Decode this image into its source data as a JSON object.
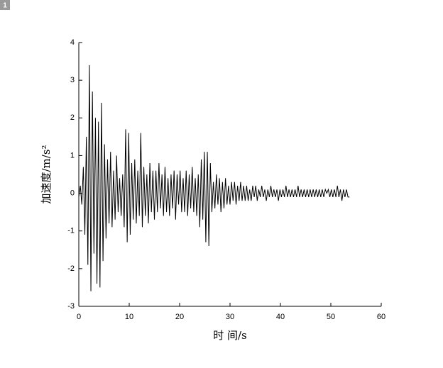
{
  "chart_data": {
    "type": "line",
    "panel_label": "1",
    "xlabel": "时 间/s",
    "ylabel": "加速度/m/s²",
    "xlim": [
      0,
      60
    ],
    "ylim": [
      -3,
      4
    ],
    "xticks": [
      0,
      10,
      20,
      30,
      40,
      50,
      60
    ],
    "yticks": [
      -3,
      -2,
      -1,
      0,
      1,
      2,
      3,
      4
    ],
    "color": "#000000",
    "x": [
      0,
      0.3,
      0.6,
      0.9,
      1.2,
      1.5,
      1.8,
      2.1,
      2.4,
      2.7,
      3,
      3.3,
      3.6,
      3.9,
      4.2,
      4.5,
      4.8,
      5.1,
      5.4,
      5.7,
      6,
      6.3,
      6.6,
      6.9,
      7.2,
      7.5,
      7.8,
      8.1,
      8.4,
      8.7,
      9,
      9.3,
      9.6,
      9.9,
      10.2,
      10.5,
      10.8,
      11.1,
      11.4,
      11.7,
      12,
      12.3,
      12.6,
      12.9,
      13.2,
      13.5,
      13.8,
      14.1,
      14.4,
      14.7,
      15,
      15.3,
      15.6,
      15.9,
      16.2,
      16.5,
      16.8,
      17.1,
      17.4,
      17.7,
      18,
      18.3,
      18.6,
      18.9,
      19.2,
      19.5,
      19.8,
      20.1,
      20.4,
      20.7,
      21,
      21.3,
      21.6,
      21.9,
      22.2,
      22.5,
      22.8,
      23.1,
      23.4,
      23.7,
      24,
      24.3,
      24.6,
      24.9,
      25.2,
      25.5,
      25.8,
      26.1,
      26.4,
      26.7,
      27,
      27.3,
      27.6,
      27.9,
      28.2,
      28.5,
      28.8,
      29.1,
      29.4,
      29.7,
      30,
      30.3,
      30.6,
      30.9,
      31.2,
      31.5,
      31.8,
      32.1,
      32.4,
      32.7,
      33,
      33.3,
      33.6,
      33.9,
      34.2,
      34.5,
      34.8,
      35.1,
      35.4,
      35.7,
      36,
      36.3,
      36.6,
      36.9,
      37.2,
      37.5,
      37.8,
      38.1,
      38.4,
      38.7,
      39,
      39.3,
      39.6,
      39.9,
      40.2,
      40.5,
      40.8,
      41.1,
      41.4,
      41.7,
      42,
      42.3,
      42.6,
      42.9,
      43.2,
      43.5,
      43.8,
      44.1,
      44.4,
      44.7,
      45,
      45.3,
      45.6,
      45.9,
      46.2,
      46.5,
      46.8,
      47.1,
      47.4,
      47.7,
      48,
      48.3,
      48.6,
      48.9,
      49.2,
      49.5,
      49.8,
      50.1,
      50.4,
      50.7,
      51,
      51.3,
      51.6,
      51.9,
      52.2,
      52.5,
      52.8,
      53.1,
      53.4,
      53.7
    ],
    "values": [
      -0.1,
      0.2,
      -0.3,
      0.7,
      -1.1,
      1.5,
      -1.9,
      3.4,
      -2.6,
      2.7,
      -1.6,
      2.0,
      -2.4,
      1.9,
      -2.5,
      2.4,
      -1.8,
      1.3,
      -1.2,
      0.9,
      -0.8,
      1.1,
      -0.9,
      0.6,
      -0.7,
      1.0,
      -0.5,
      0.4,
      -0.6,
      0.5,
      -0.9,
      1.7,
      -1.3,
      1.6,
      -1.1,
      0.8,
      -0.7,
      0.9,
      -0.8,
      0.6,
      -0.6,
      1.6,
      -0.9,
      0.7,
      -0.6,
      0.5,
      -0.8,
      0.8,
      -0.5,
      0.6,
      -0.7,
      0.6,
      -0.5,
      0.8,
      -0.4,
      0.5,
      -0.6,
      0.7,
      -0.5,
      0.4,
      -0.6,
      0.5,
      -0.4,
      0.6,
      -0.7,
      0.5,
      -0.3,
      0.6,
      -0.5,
      0.4,
      -0.5,
      0.6,
      -0.6,
      0.5,
      -0.4,
      0.7,
      -0.5,
      0.4,
      -0.6,
      0.5,
      -0.9,
      0.9,
      -0.7,
      1.1,
      -1.3,
      1.1,
      -1.4,
      0.8,
      -0.5,
      0.3,
      -0.4,
      0.5,
      -0.3,
      0.4,
      -0.5,
      0.3,
      -0.4,
      0.4,
      -0.3,
      0.2,
      -0.3,
      0.3,
      -0.2,
      0.3,
      -0.3,
      0.2,
      -0.2,
      0.3,
      -0.2,
      0.2,
      -0.2,
      0.2,
      -0.2,
      0.1,
      -0.2,
      0.2,
      -0.1,
      0.2,
      -0.2,
      0.1,
      -0.1,
      0.2,
      -0.1,
      0.1,
      -0.2,
      0.1,
      -0.1,
      0.2,
      -0.1,
      0.1,
      -0.1,
      0.1,
      -0.2,
      0.1,
      -0.1,
      0.1,
      -0.1,
      0.2,
      -0.1,
      0.1,
      -0.1,
      0.1,
      -0.1,
      0.1,
      -0.1,
      0.2,
      -0.1,
      0.1,
      -0.1,
      0.1,
      -0.1,
      0.1,
      -0.1,
      0.1,
      -0.1,
      0.1,
      -0.1,
      0.1,
      -0.1,
      0.1,
      -0.1,
      0.1,
      -0.1,
      0.1,
      0,
      0.1,
      -0.1,
      0.1,
      -0.1,
      0.1,
      -0.1,
      0.2,
      -0.1,
      0.1,
      -0.2,
      0.1,
      -0.1,
      0.1,
      -0.1,
      -0.1
    ]
  }
}
